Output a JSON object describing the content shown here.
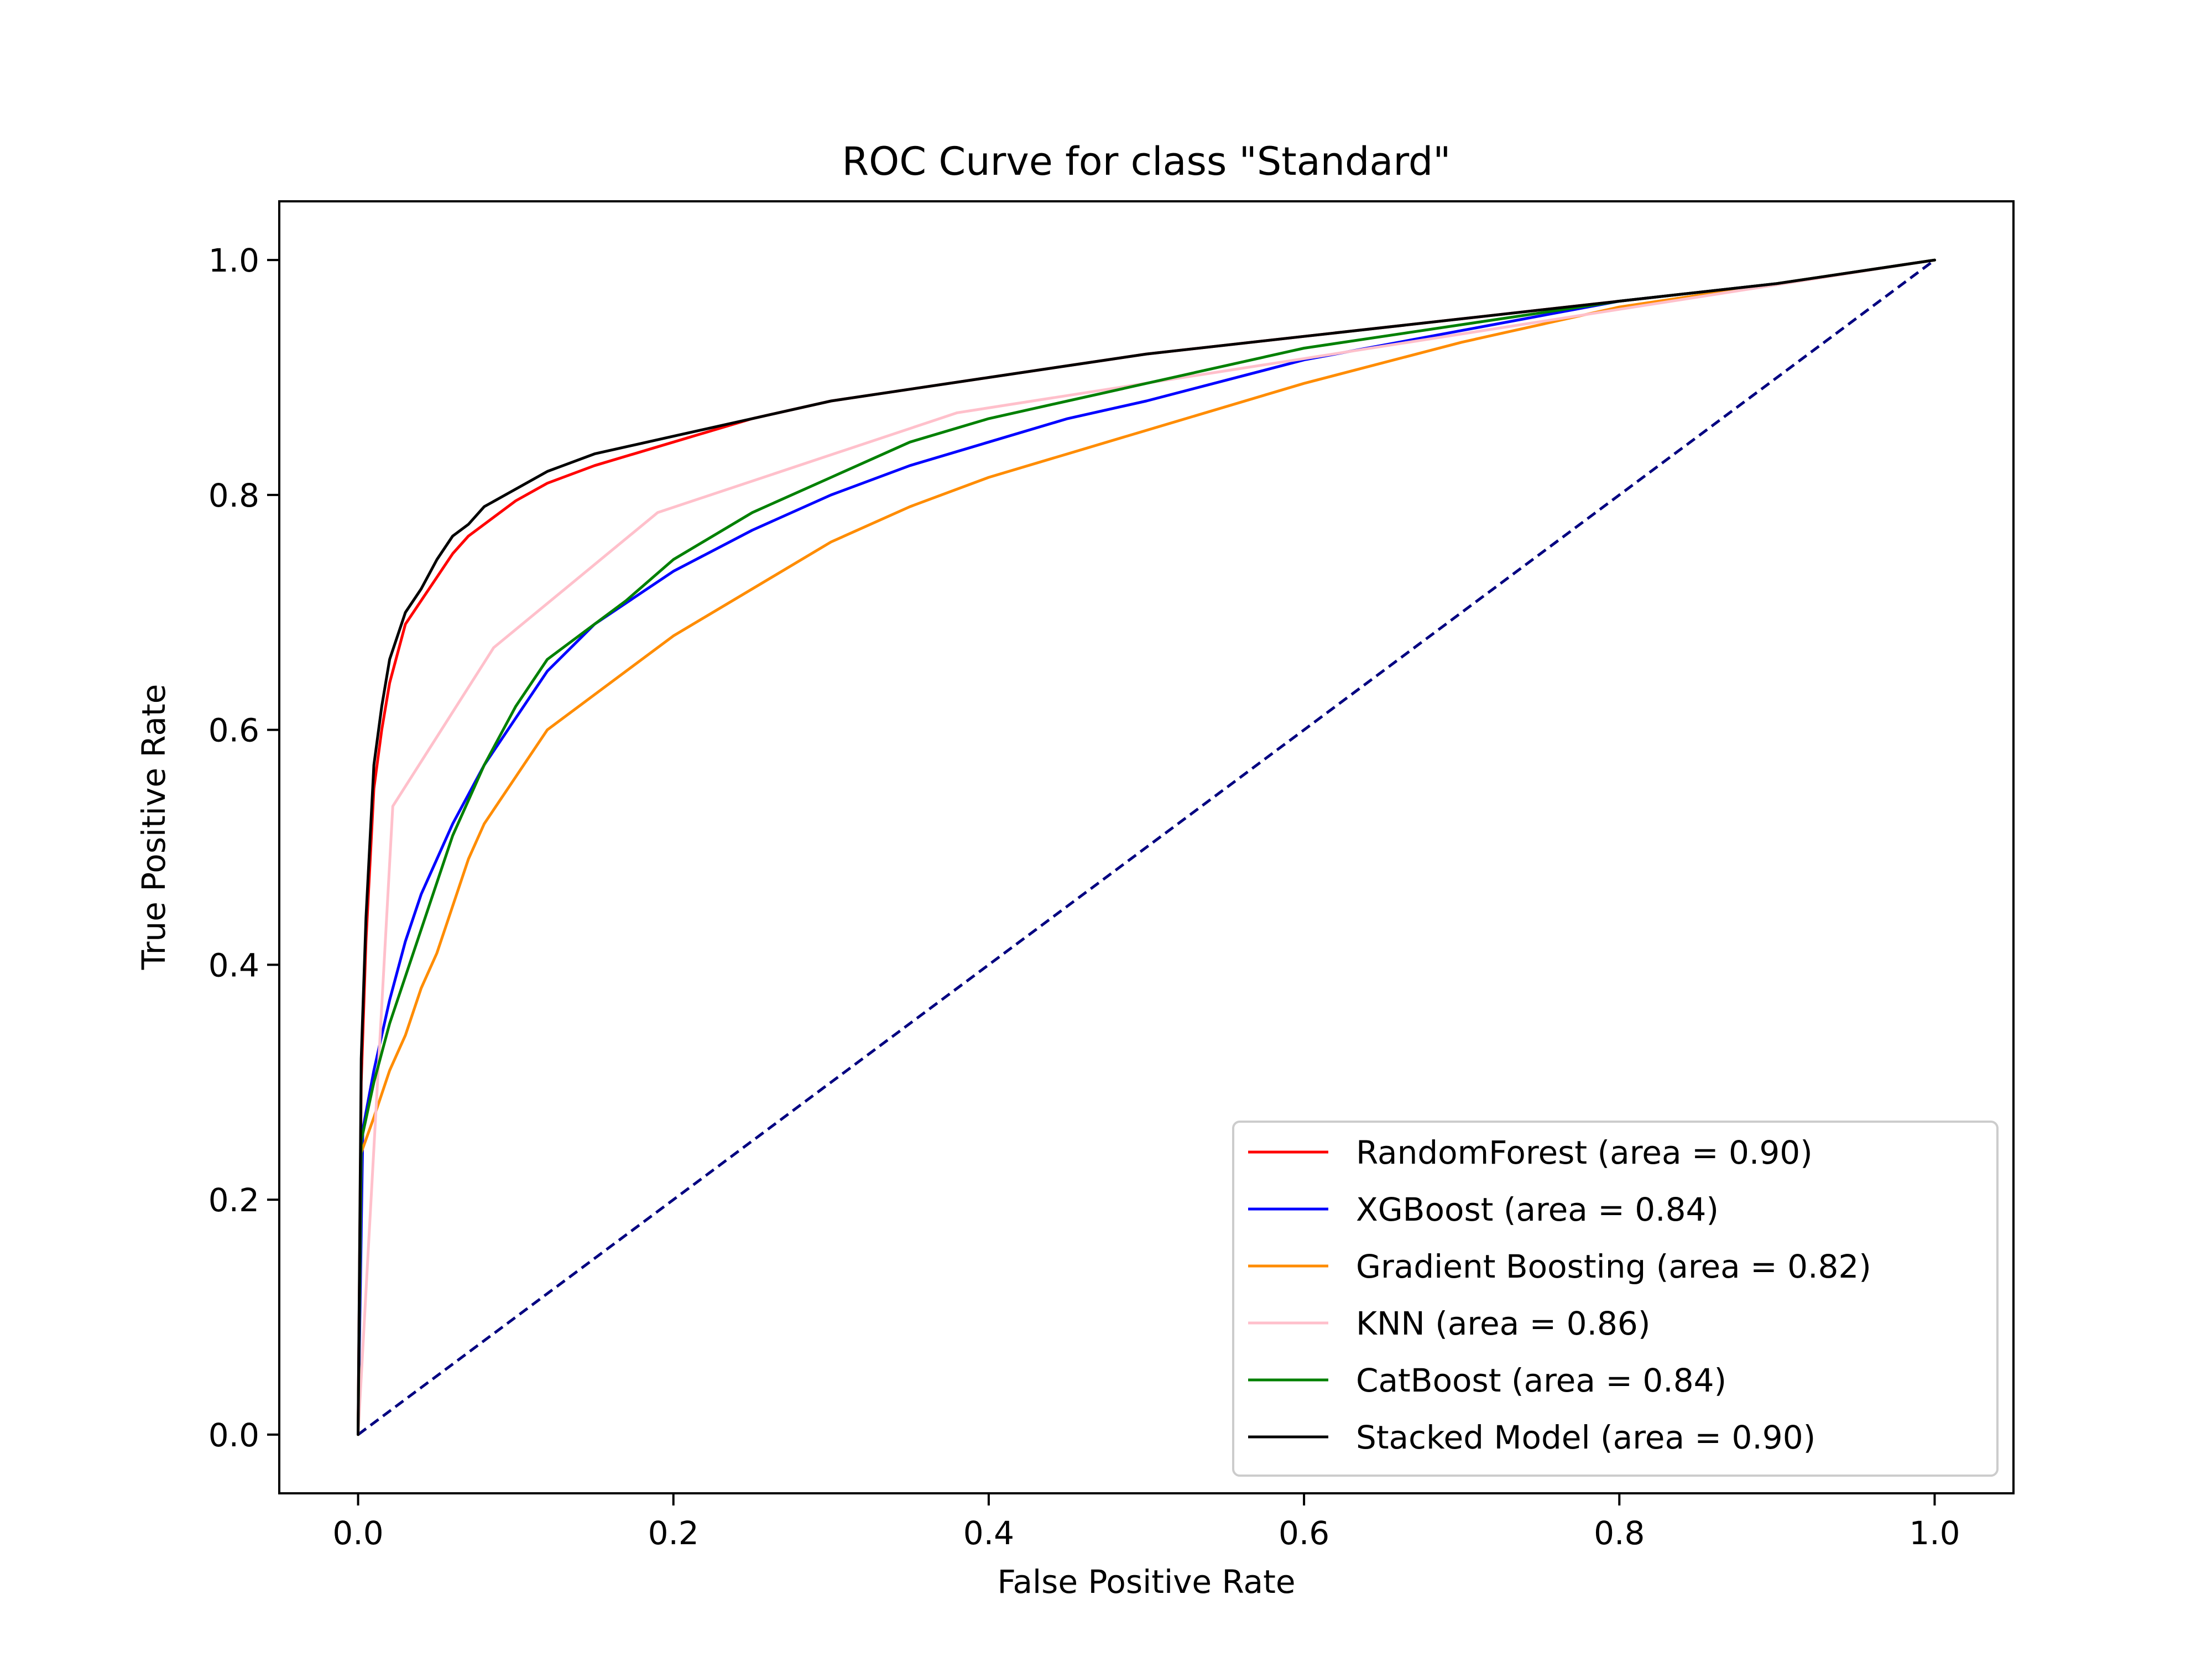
{
  "chart_data": {
    "type": "line",
    "title": "ROC Curve for class \"Standard\"",
    "xlabel": "False Positive Rate",
    "ylabel": "True Positive Rate",
    "xlim": [
      -0.05,
      1.05
    ],
    "ylim": [
      -0.05,
      1.05
    ],
    "xticks": [
      0.0,
      0.2,
      0.4,
      0.6,
      0.8,
      1.0
    ],
    "yticks": [
      0.0,
      0.2,
      0.4,
      0.6,
      0.8,
      1.0
    ],
    "xtick_labels": [
      "0.0",
      "0.2",
      "0.4",
      "0.6",
      "0.8",
      "1.0"
    ],
    "ytick_labels": [
      "0.0",
      "0.2",
      "0.4",
      "0.6",
      "0.8",
      "1.0"
    ],
    "grid": false,
    "legend_position": "lower-right",
    "reference_line": {
      "x": [
        0,
        1
      ],
      "y": [
        0,
        1
      ],
      "color": "#000080",
      "style": "dashed"
    },
    "series": [
      {
        "name": "RandomForest (area = 0.90)",
        "color": "#ff0000",
        "x": [
          0,
          0.002,
          0.005,
          0.01,
          0.015,
          0.02,
          0.03,
          0.04,
          0.05,
          0.06,
          0.07,
          0.08,
          0.1,
          0.12,
          0.15,
          0.2,
          0.25,
          0.3,
          0.4,
          0.5,
          0.6,
          0.7,
          0.8,
          0.9,
          1.0
        ],
        "y": [
          0,
          0.3,
          0.42,
          0.55,
          0.6,
          0.64,
          0.69,
          0.71,
          0.73,
          0.75,
          0.765,
          0.775,
          0.795,
          0.81,
          0.825,
          0.845,
          0.865,
          0.88,
          0.9,
          0.92,
          0.935,
          0.95,
          0.965,
          0.98,
          1.0
        ]
      },
      {
        "name": "XGBoost (area = 0.84)",
        "color": "#0000ff",
        "x": [
          0,
          0.003,
          0.01,
          0.02,
          0.03,
          0.04,
          0.05,
          0.06,
          0.08,
          0.1,
          0.12,
          0.15,
          0.2,
          0.25,
          0.3,
          0.35,
          0.4,
          0.45,
          0.5,
          0.6,
          0.7,
          0.8,
          0.9,
          1.0
        ],
        "y": [
          0,
          0.26,
          0.31,
          0.37,
          0.42,
          0.46,
          0.49,
          0.52,
          0.57,
          0.61,
          0.65,
          0.69,
          0.735,
          0.77,
          0.8,
          0.825,
          0.845,
          0.865,
          0.88,
          0.915,
          0.94,
          0.965,
          0.98,
          1.0
        ]
      },
      {
        "name": "Gradient Boosting (area = 0.82)",
        "color": "#ff8c00",
        "x": [
          0,
          0.002,
          0.01,
          0.02,
          0.03,
          0.04,
          0.05,
          0.06,
          0.07,
          0.08,
          0.1,
          0.12,
          0.15,
          0.2,
          0.25,
          0.3,
          0.35,
          0.4,
          0.45,
          0.5,
          0.6,
          0.7,
          0.8,
          0.9,
          1.0
        ],
        "y": [
          0,
          0.24,
          0.27,
          0.31,
          0.34,
          0.38,
          0.41,
          0.45,
          0.49,
          0.52,
          0.56,
          0.6,
          0.63,
          0.68,
          0.72,
          0.76,
          0.79,
          0.815,
          0.835,
          0.855,
          0.895,
          0.93,
          0.96,
          0.98,
          1.0
        ]
      },
      {
        "name": "KNN (area = 0.86)",
        "color": "#ffc0cb",
        "x": [
          0,
          0.022,
          0.086,
          0.19,
          0.38,
          1.0
        ],
        "y": [
          0,
          0.535,
          0.67,
          0.785,
          0.87,
          1.0
        ]
      },
      {
        "name": "CatBoost (area = 0.84)",
        "color": "#008000",
        "x": [
          0,
          0.002,
          0.01,
          0.02,
          0.03,
          0.04,
          0.05,
          0.06,
          0.08,
          0.1,
          0.12,
          0.14,
          0.17,
          0.2,
          0.25,
          0.3,
          0.35,
          0.4,
          0.45,
          0.5,
          0.6,
          0.7,
          0.8,
          0.9,
          1.0
        ],
        "y": [
          0,
          0.25,
          0.3,
          0.35,
          0.39,
          0.43,
          0.47,
          0.51,
          0.57,
          0.62,
          0.66,
          0.68,
          0.71,
          0.745,
          0.785,
          0.815,
          0.845,
          0.865,
          0.88,
          0.895,
          0.925,
          0.945,
          0.965,
          0.98,
          1.0
        ]
      },
      {
        "name": "Stacked Model (area = 0.90)",
        "color": "#000000",
        "x": [
          0,
          0.002,
          0.005,
          0.01,
          0.015,
          0.02,
          0.03,
          0.04,
          0.05,
          0.06,
          0.07,
          0.08,
          0.1,
          0.12,
          0.15,
          0.2,
          0.25,
          0.3,
          0.4,
          0.5,
          0.6,
          0.7,
          0.8,
          0.9,
          1.0
        ],
        "y": [
          0,
          0.32,
          0.44,
          0.57,
          0.62,
          0.66,
          0.7,
          0.72,
          0.745,
          0.765,
          0.775,
          0.79,
          0.805,
          0.82,
          0.835,
          0.85,
          0.865,
          0.88,
          0.9,
          0.92,
          0.935,
          0.95,
          0.965,
          0.98,
          1.0
        ]
      }
    ]
  }
}
